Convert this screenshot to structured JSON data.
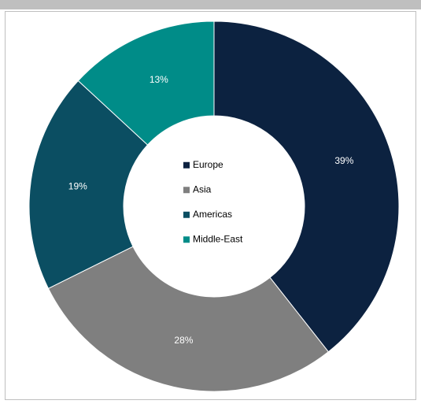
{
  "chart_data": {
    "type": "donut",
    "categories": [
      "Europe",
      "Asia",
      "Americas",
      "Middle-East"
    ],
    "values": [
      39,
      28,
      19,
      13
    ],
    "value_labels": [
      "39%",
      "28%",
      "19%",
      "13%"
    ],
    "colors": [
      "#0c2240",
      "#7f7f7f",
      "#0b4e62",
      "#008c88"
    ],
    "legend": "center"
  }
}
